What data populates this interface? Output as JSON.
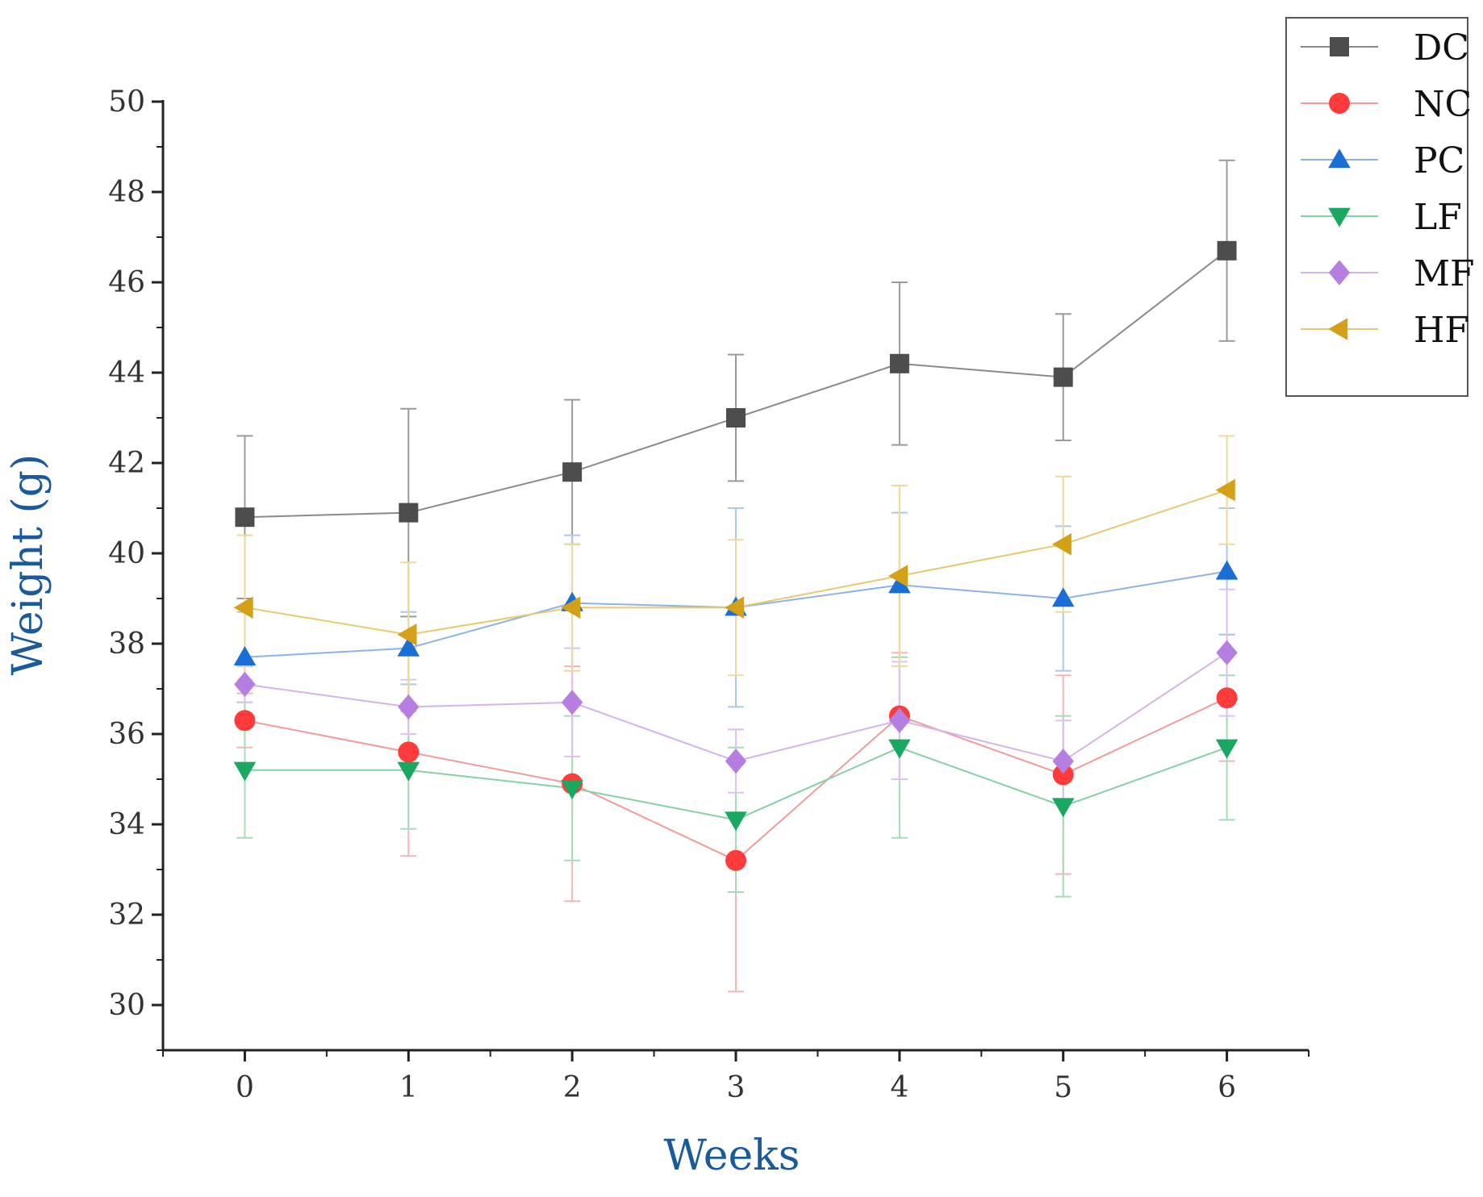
{
  "chart_data": {
    "type": "line",
    "title": "",
    "xlabel": "Weeks",
    "ylabel": "Weight (g)",
    "x": [
      0,
      1,
      2,
      3,
      4,
      5,
      6
    ],
    "x_ticks": [
      "0",
      "1",
      "2",
      "3",
      "4",
      "5",
      "6"
    ],
    "xlim": [
      -0.5,
      6.5
    ],
    "ylim": [
      29,
      50
    ],
    "y_ticks": [
      "30",
      "32",
      "34",
      "36",
      "38",
      "40",
      "42",
      "44",
      "46",
      "48",
      "50"
    ],
    "y_tick_values": [
      30,
      32,
      34,
      36,
      38,
      40,
      42,
      44,
      46,
      48,
      50
    ],
    "grid": false,
    "legend_position": "top-right",
    "series": [
      {
        "name": "DC",
        "marker": "square",
        "color": "#4d4d4d",
        "line_color": "#8a8a8a",
        "error_color": "#9a9a9a",
        "values": [
          40.8,
          40.9,
          41.8,
          43.0,
          44.2,
          43.9,
          46.7
        ],
        "errors": [
          1.8,
          2.3,
          1.6,
          1.4,
          1.8,
          1.4,
          2.0
        ]
      },
      {
        "name": "NC",
        "marker": "circle",
        "color": "#ff3b3b",
        "line_color": "#f39a9a",
        "error_color": "#f7b5b5",
        "values": [
          36.3,
          35.6,
          34.9,
          33.2,
          36.4,
          35.1,
          36.8
        ],
        "errors": [
          0.6,
          2.3,
          2.6,
          2.9,
          1.4,
          2.2,
          1.4
        ]
      },
      {
        "name": "PC",
        "marker": "triangle-up",
        "color": "#1a6fd6",
        "line_color": "#8ab4e8",
        "error_color": "#a9c8ee",
        "values": [
          37.7,
          37.9,
          38.9,
          38.8,
          39.3,
          39.0,
          39.6
        ],
        "errors": [
          1.0,
          0.8,
          1.5,
          2.2,
          1.6,
          1.6,
          1.4
        ]
      },
      {
        "name": "LF",
        "marker": "triangle-down",
        "color": "#1aa860",
        "line_color": "#85d0a6",
        "error_color": "#a3dcbb",
        "values": [
          35.2,
          35.2,
          34.8,
          34.1,
          35.7,
          34.4,
          35.7
        ],
        "errors": [
          1.5,
          1.3,
          1.6,
          1.6,
          2.0,
          2.0,
          1.6
        ]
      },
      {
        "name": "MF",
        "marker": "diamond",
        "color": "#b57ee0",
        "line_color": "#d4b2ee",
        "error_color": "#ddc2f2",
        "values": [
          37.1,
          36.6,
          36.7,
          35.4,
          36.3,
          35.4,
          37.8
        ],
        "errors": [
          0.4,
          0.6,
          1.2,
          0.7,
          1.3,
          0.9,
          1.4
        ]
      },
      {
        "name": "HF",
        "marker": "triangle-left",
        "color": "#d4a017",
        "line_color": "#e8c870",
        "error_color": "#f0d99a",
        "values": [
          38.8,
          38.2,
          38.8,
          38.8,
          39.5,
          40.2,
          41.4
        ],
        "errors": [
          1.6,
          1.6,
          1.4,
          1.5,
          2.0,
          1.5,
          1.2
        ]
      }
    ]
  }
}
